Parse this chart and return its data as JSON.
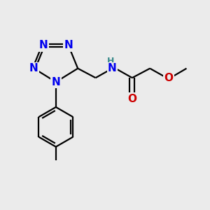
{
  "background_color": "#ebebeb",
  "bond_color": "#000000",
  "n_color": "#0000ee",
  "o_color": "#cc0000",
  "h_color": "#3a8a8a",
  "line_width": 1.6,
  "font_size_atoms": 11,
  "font_size_h": 9,
  "figsize": [
    3.0,
    3.0
  ],
  "dpi": 100,
  "xlim": [
    0,
    10
  ],
  "ylim": [
    0,
    10
  ]
}
